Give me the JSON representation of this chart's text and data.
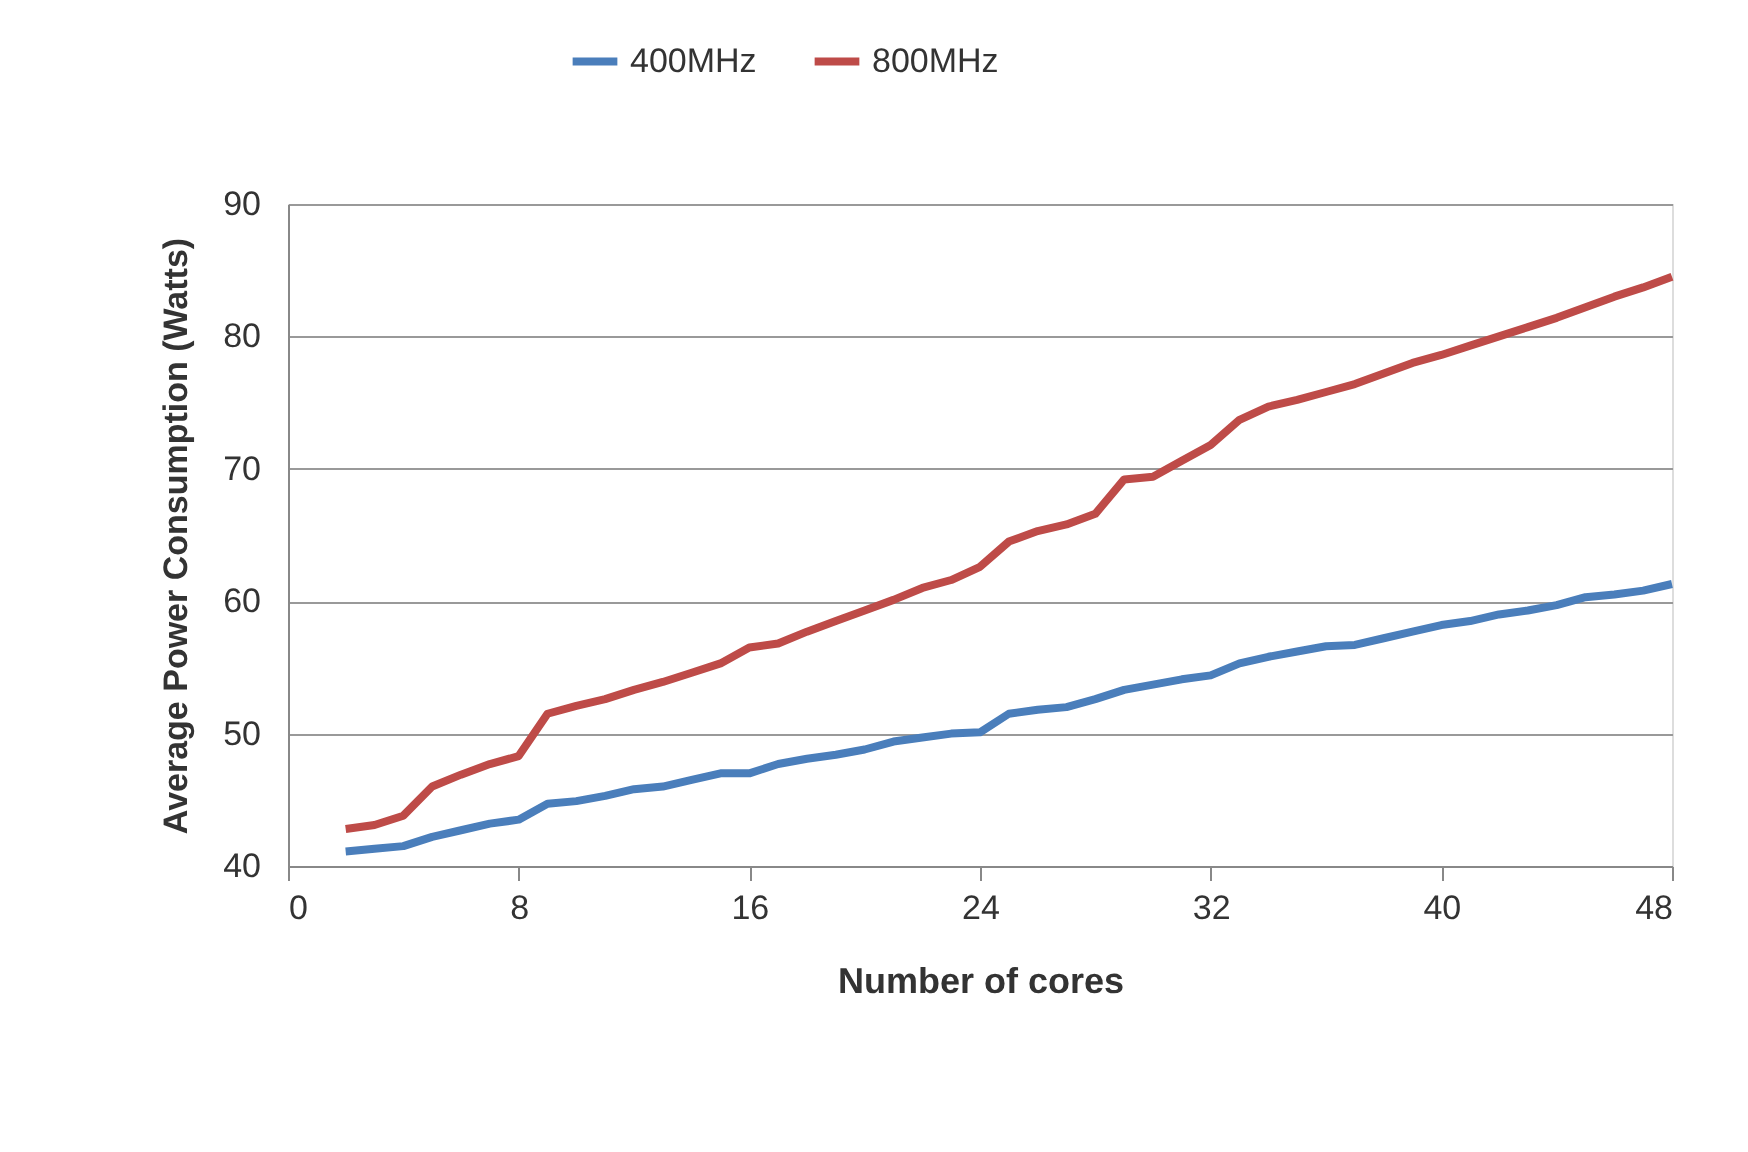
{
  "chart_data": {
    "type": "line",
    "xlabel": "Number of cores",
    "ylabel": "Average Power Consumption (Watts)",
    "x": [
      2,
      3,
      4,
      5,
      6,
      7,
      8,
      9,
      10,
      11,
      12,
      13,
      14,
      15,
      16,
      17,
      18,
      19,
      20,
      21,
      22,
      23,
      24,
      25,
      26,
      27,
      28,
      29,
      30,
      31,
      32,
      33,
      34,
      35,
      36,
      37,
      38,
      39,
      40,
      41,
      42,
      43,
      44,
      45,
      46,
      47,
      48
    ],
    "series": [
      {
        "name": "400MHz",
        "color": "#4a7ebb",
        "values": [
          41.1,
          41.3,
          41.5,
          42.2,
          42.7,
          43.2,
          43.5,
          44.7,
          44.9,
          45.3,
          45.8,
          46.0,
          46.5,
          47.0,
          47.0,
          47.7,
          48.1,
          48.4,
          48.8,
          49.4,
          49.7,
          50.0,
          50.1,
          51.5,
          51.8,
          52.0,
          52.6,
          53.3,
          53.7,
          54.1,
          54.4,
          55.3,
          55.8,
          56.2,
          56.6,
          56.7,
          57.2,
          57.7,
          58.2,
          58.5,
          59.0,
          59.3,
          59.7,
          60.3,
          60.5,
          60.8,
          61.3
        ]
      },
      {
        "name": "800MHz",
        "color": "#be4b48",
        "values": [
          42.8,
          43.1,
          43.8,
          46.0,
          46.9,
          47.7,
          48.3,
          51.5,
          52.1,
          52.6,
          53.3,
          53.9,
          54.6,
          55.3,
          56.5,
          56.8,
          57.7,
          58.5,
          59.3,
          60.1,
          61.0,
          61.6,
          62.6,
          64.5,
          65.3,
          65.8,
          66.6,
          69.2,
          69.4,
          70.6,
          71.8,
          73.7,
          74.7,
          75.2,
          75.8,
          76.4,
          77.2,
          78.0,
          78.6,
          79.3,
          80.0,
          80.7,
          81.4,
          82.2,
          83.0,
          83.7,
          84.5
        ]
      }
    ],
    "xlim": [
      0,
      48
    ],
    "xticks": [
      0,
      8,
      16,
      24,
      32,
      40,
      48
    ],
    "ylim": [
      40,
      90
    ],
    "yticks": [
      40,
      50,
      60,
      70,
      80,
      90
    ],
    "grid": "y",
    "legend": "top",
    "marker": "none",
    "line_style": "solid"
  }
}
